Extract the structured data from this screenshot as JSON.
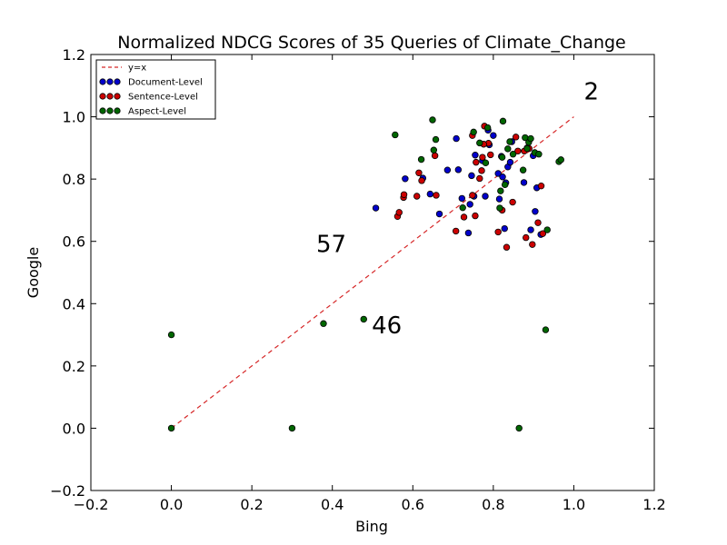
{
  "chart_data": {
    "type": "scatter",
    "title": "Normalized NDCG Scores of 35 Queries of Climate_Change",
    "xlabel": "Bing",
    "ylabel": "Google",
    "xlim": [
      -0.2,
      1.2
    ],
    "ylim": [
      -0.2,
      1.2
    ],
    "x_ticks": [
      "−0.2",
      "0.0",
      "0.2",
      "0.4",
      "0.6",
      "0.8",
      "1.0",
      "1.2"
    ],
    "y_ticks": [
      "−0.2",
      "0.0",
      "0.2",
      "0.4",
      "0.6",
      "0.8",
      "1.0",
      "1.2"
    ],
    "grid": false,
    "legend_position": "top-left",
    "reference_line": {
      "name": "y=x",
      "color": "#d62728",
      "from": [
        0,
        0
      ],
      "to": [
        1,
        1
      ]
    },
    "series": [
      {
        "name": "Document-Level",
        "color": "#0000cc",
        "x": [
          0.508,
          0.581,
          0.625,
          0.643,
          0.666,
          0.686,
          0.708,
          0.713,
          0.722,
          0.738,
          0.742,
          0.746,
          0.752,
          0.755,
          0.773,
          0.78,
          0.787,
          0.79,
          0.8,
          0.812,
          0.815,
          0.82,
          0.823,
          0.828,
          0.831,
          0.836,
          0.842,
          0.846,
          0.876,
          0.884,
          0.893,
          0.899,
          0.904,
          0.908,
          0.918
        ],
        "y": [
          0.707,
          0.801,
          0.803,
          0.752,
          0.688,
          0.829,
          0.93,
          0.83,
          0.738,
          0.627,
          0.719,
          0.811,
          0.745,
          0.877,
          0.859,
          0.745,
          0.957,
          0.91,
          0.94,
          0.818,
          0.736,
          0.873,
          0.807,
          0.641,
          0.788,
          0.839,
          0.854,
          0.92,
          0.789,
          0.9,
          0.637,
          0.875,
          0.696,
          0.772,
          0.622
        ]
      },
      {
        "name": "Sentence-Level",
        "color": "#cc0000",
        "x": [
          0.562,
          0.566,
          0.577,
          0.615,
          0.622,
          0.655,
          0.658,
          0.707,
          0.727,
          0.748,
          0.755,
          0.757,
          0.766,
          0.771,
          0.773,
          0.778,
          0.788,
          0.793,
          0.812,
          0.822,
          0.833,
          0.848,
          0.856,
          0.861,
          0.877,
          0.881,
          0.889,
          0.897,
          0.911,
          0.919,
          0.923,
          0.578,
          0.61,
          0.748,
          0.776
        ],
        "y": [
          0.68,
          0.693,
          0.741,
          0.82,
          0.795,
          0.875,
          0.748,
          0.633,
          0.678,
          0.94,
          0.682,
          0.854,
          0.802,
          0.827,
          0.87,
          0.97,
          0.915,
          0.878,
          0.63,
          0.7,
          0.581,
          0.726,
          0.935,
          0.89,
          0.89,
          0.612,
          0.898,
          0.59,
          0.66,
          0.778,
          0.625,
          0.75,
          0.745,
          0.748,
          0.912
        ]
      },
      {
        "name": "Aspect-Level",
        "color": "#006600",
        "x": [
          0.0,
          0.0,
          0.3,
          0.378,
          0.478,
          0.556,
          0.621,
          0.649,
          0.652,
          0.657,
          0.724,
          0.751,
          0.766,
          0.781,
          0.786,
          0.816,
          0.818,
          0.822,
          0.824,
          0.829,
          0.841,
          0.849,
          0.864,
          0.874,
          0.879,
          0.884,
          0.888,
          0.903,
          0.913,
          0.93,
          0.934,
          0.963,
          0.968,
          0.836,
          0.893
        ],
        "y": [
          0.3,
          0.0,
          0.0,
          0.336,
          0.35,
          0.942,
          0.863,
          0.99,
          0.893,
          0.927,
          0.708,
          0.951,
          0.916,
          0.852,
          0.965,
          0.707,
          0.762,
          0.87,
          0.986,
          0.782,
          0.92,
          0.88,
          0.0,
          0.829,
          0.933,
          0.898,
          0.918,
          0.885,
          0.88,
          0.316,
          0.637,
          0.856,
          0.862,
          0.897,
          0.93
        ]
      }
    ],
    "annotations": [
      {
        "text": "2",
        "x": 1.025,
        "y": 1.055
      },
      {
        "text": "57",
        "x": 0.36,
        "y": 0.565
      },
      {
        "text": "46",
        "x": 0.498,
        "y": 0.305
      }
    ]
  }
}
